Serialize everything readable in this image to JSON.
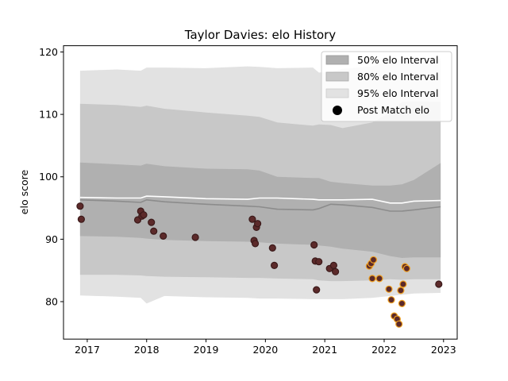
{
  "chart_data": {
    "type": "scatter",
    "title": "Taylor Davies: elo History",
    "xlabel": "",
    "ylabel": "elo score",
    "xlim": [
      2016.6,
      2023.23
    ],
    "ylim": [
      74,
      121
    ],
    "x_ticks": [
      2017,
      2018,
      2019,
      2020,
      2021,
      2022,
      2023
    ],
    "x_tick_labels": [
      "2017",
      "2018",
      "2019",
      "2020",
      "2021",
      "2022",
      "2023"
    ],
    "y_ticks": [
      80,
      90,
      100,
      110,
      120
    ],
    "y_tick_labels": [
      "80",
      "90",
      "100",
      "110",
      "120"
    ],
    "grid": false,
    "legend_position": "top-right",
    "legend": {
      "band50": "50% elo Interval",
      "band80": "80% elo Interval",
      "band95": "95% elo Interval",
      "points": "Post Match elo"
    },
    "colors": {
      "band50": "#b0b0b0",
      "band80": "#c8c8c8",
      "band95": "#e2e2e2",
      "median_line": "#8c8c8c",
      "mean_line": "#ffffff",
      "point_fill": "#5c2a2a",
      "point_edge_primary": "#3b1a1a",
      "point_edge_highlight": "#f0a020"
    },
    "bands": {
      "x": [
        2016.88,
        2017.5,
        2017.9,
        2018.0,
        2018.3,
        2019.0,
        2019.7,
        2019.9,
        2020.2,
        2020.8,
        2020.9,
        2021.1,
        2021.3,
        2021.8,
        2022.1,
        2022.3,
        2022.5,
        2022.95
      ],
      "q95_upper": [
        117.0,
        117.2,
        117.0,
        117.5,
        117.5,
        117.4,
        117.7,
        117.6,
        117.4,
        117.5,
        116.7,
        116.8,
        117.3,
        117.7,
        118.7,
        118.8,
        118.6,
        118.9
      ],
      "q80_upper": [
        111.7,
        111.5,
        111.2,
        111.4,
        110.9,
        110.3,
        109.8,
        109.6,
        108.7,
        108.2,
        108.4,
        108.3,
        107.8,
        108.7,
        110.3,
        112.0,
        112.1,
        112.0
      ],
      "q50_upper": [
        102.3,
        102.0,
        101.8,
        102.1,
        101.7,
        101.3,
        101.2,
        101.0,
        100.0,
        99.8,
        99.8,
        99.2,
        99.0,
        98.6,
        98.6,
        98.8,
        99.5,
        102.2
      ],
      "mean": [
        96.7,
        96.6,
        96.6,
        96.9,
        96.8,
        96.5,
        96.4,
        96.6,
        96.6,
        96.4,
        96.3,
        96.3,
        96.3,
        96.4,
        95.8,
        95.8,
        96.1,
        96.2
      ],
      "median": [
        96.3,
        96.1,
        95.9,
        96.3,
        96.0,
        95.6,
        95.3,
        95.2,
        94.8,
        94.7,
        94.9,
        95.6,
        95.5,
        95.1,
        94.5,
        94.5,
        94.7,
        95.2
      ],
      "q50_lower": [
        90.5,
        90.4,
        90.2,
        90.1,
        89.9,
        89.7,
        89.6,
        89.5,
        89.3,
        89.1,
        89.0,
        88.8,
        88.5,
        88.0,
        87.3,
        87.0,
        87.1,
        87.1
      ],
      "q80_lower": [
        84.3,
        84.3,
        84.2,
        84.1,
        84.0,
        83.9,
        83.8,
        83.8,
        83.7,
        83.6,
        83.4,
        83.3,
        83.3,
        83.4,
        83.6,
        83.5,
        83.6,
        83.6
      ],
      "q95_lower": [
        81.0,
        80.8,
        80.6,
        79.7,
        80.9,
        80.7,
        80.6,
        80.5,
        80.5,
        80.4,
        80.4,
        80.4,
        80.4,
        80.6,
        80.9,
        81.1,
        81.3,
        81.4
      ]
    },
    "series": [
      {
        "name": "Post Match elo",
        "x": [
          2016.88,
          2016.9,
          2017.85,
          2017.9,
          2017.92,
          2017.95,
          2018.08,
          2018.12,
          2018.28,
          2018.82,
          2019.78,
          2019.81,
          2019.83,
          2019.85,
          2019.87,
          2020.12,
          2020.15,
          2020.82,
          2020.84,
          2020.86,
          2020.9,
          2021.08,
          2021.15,
          2021.18,
          2022.92
        ],
        "y": [
          95.3,
          93.2,
          93.1,
          94.5,
          93.7,
          93.9,
          92.7,
          91.3,
          90.5,
          90.3,
          93.2,
          89.8,
          89.3,
          91.9,
          92.5,
          88.6,
          85.8,
          89.1,
          86.5,
          81.9,
          86.4,
          85.3,
          85.8,
          84.8,
          82.8
        ]
      },
      {
        "name": "",
        "x": [
          2021.75,
          2021.78,
          2021.8,
          2021.82,
          2021.92,
          2022.08,
          2022.12,
          2022.17,
          2022.22,
          2022.25,
          2022.28,
          2022.3,
          2022.32,
          2022.35,
          2022.38
        ],
        "y": [
          85.7,
          86.1,
          83.7,
          86.7,
          83.7,
          82.0,
          80.3,
          77.7,
          77.2,
          76.4,
          81.8,
          79.7,
          82.8,
          85.6,
          85.3
        ]
      }
    ]
  }
}
